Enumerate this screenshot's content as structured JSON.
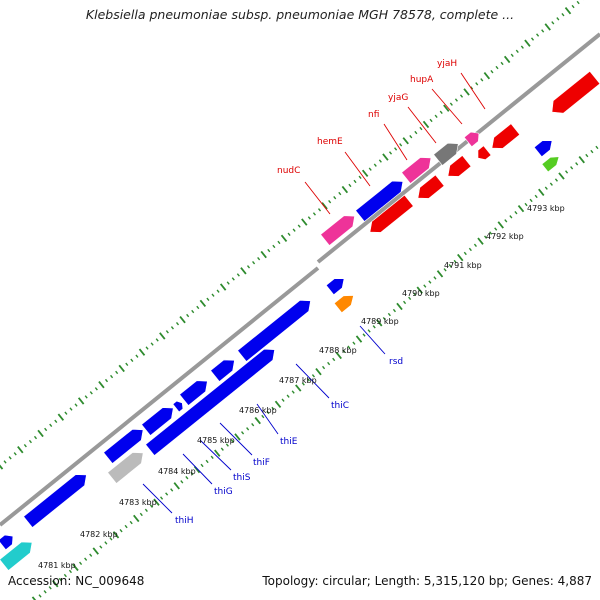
{
  "title": "Klebsiella pneumoniae subsp. pneumoniae MGH 78578, complete ...",
  "footer": {
    "accession": "Accession: NC_009648",
    "summary": "Topology: circular; Length: 5,315,120 bp; Genes: 4,887"
  },
  "ticks": [
    {
      "label": "4781 kbp"
    },
    {
      "label": "4782 kbp"
    },
    {
      "label": "4783 kbp"
    },
    {
      "label": "4784 kbp"
    },
    {
      "label": "4785 kbp"
    },
    {
      "label": "4786 kbp"
    },
    {
      "label": "4787 kbp"
    },
    {
      "label": "4788 kbp"
    },
    {
      "label": "4789 kbp"
    },
    {
      "label": "4790 kbp"
    },
    {
      "label": "4791 kbp"
    },
    {
      "label": "4792 kbp"
    },
    {
      "label": "4793 kbp"
    }
  ],
  "gene_labels": [
    {
      "label": "nudC",
      "color": "#dd0000"
    },
    {
      "label": "hemE",
      "color": "#dd0000"
    },
    {
      "label": "nfi",
      "color": "#dd0000"
    },
    {
      "label": "yjaG",
      "color": "#dd0000"
    },
    {
      "label": "hupA",
      "color": "#dd0000"
    },
    {
      "label": "yjaH",
      "color": "#dd0000"
    },
    {
      "label": "rsd",
      "color": "#0000cc"
    },
    {
      "label": "thiC",
      "color": "#0000cc"
    },
    {
      "label": "thiE",
      "color": "#0000cc"
    },
    {
      "label": "thiF",
      "color": "#0000cc"
    },
    {
      "label": "thiS",
      "color": "#0000cc"
    },
    {
      "label": "thiG",
      "color": "#0000cc"
    },
    {
      "label": "thiH",
      "color": "#0000cc"
    }
  ],
  "colors": {
    "forward_gene": "#0000ee",
    "reverse_gene": "#ee0000",
    "pink_gene": "#ee3399",
    "gray_gene": "#777777",
    "orange_gene": "#ff8800",
    "cyan_gene": "#22cccc",
    "green_gene": "#55cc22",
    "backbone": "#999999",
    "tick_dots": "#2e8b2e",
    "blue_label": "#0000cc",
    "red_label": "#dd0000"
  }
}
